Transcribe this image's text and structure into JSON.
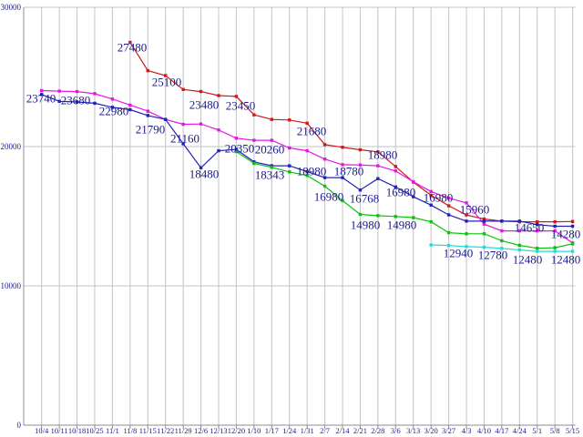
{
  "chart_data": {
    "type": "line",
    "title": "",
    "xlabel": "",
    "ylabel": "",
    "ylim": [
      0,
      30000
    ],
    "grid": true,
    "legend": "none",
    "colors": {
      "background": "#ffffff",
      "gridline": "#c3c3c3",
      "axis": "#8c8c8c",
      "label_text": "#1a1a8c"
    },
    "y_ticks": [
      {
        "label": "30000",
        "value": 30000
      },
      {
        "label": "20000",
        "value": 20000
      },
      {
        "label": "10000",
        "value": 10000
      },
      {
        "label": "0",
        "value": 0
      }
    ],
    "x_tick_labels": [
      "10/4",
      "10/11",
      "10/18",
      "10/25",
      "11/1",
      "11/8",
      "11/15",
      "11/22",
      "11/29",
      "12/6",
      "12/13",
      "12/20",
      "1/10",
      "1/17",
      "1/24",
      "1/31",
      "2/7",
      "2/14",
      "2/21",
      "2/28",
      "3/6",
      "3/13",
      "3/20",
      "3/27",
      "4/3",
      "4/10",
      "4/17",
      "4/24",
      "5/1",
      "5/8",
      "5/15"
    ],
    "series": [
      {
        "name": "series-red",
        "color": "#cc1a1a",
        "values": [
          null,
          null,
          null,
          null,
          null,
          27480,
          25450,
          25100,
          24100,
          23950,
          23660,
          23600,
          22280,
          21950,
          21910,
          21680,
          20140,
          19950,
          19770,
          19620,
          18570,
          17450,
          16500,
          15750,
          15090,
          14800,
          14650,
          14600,
          14600,
          14600,
          14620
        ]
      },
      {
        "name": "series-magenta",
        "color": "#e616e6",
        "values": [
          24020,
          23980,
          23950,
          23800,
          23410,
          22980,
          22540,
          21950,
          21600,
          21620,
          21190,
          20600,
          20450,
          20450,
          19900,
          19700,
          19100,
          18700,
          18680,
          18620,
          18250,
          17480,
          16770,
          16300,
          15960,
          14430,
          13950,
          13950,
          13950,
          13950,
          13080
        ]
      },
      {
        "name": "series-blue",
        "color": "#2222bb",
        "values": [
          23740,
          23250,
          23200,
          23110,
          22820,
          22650,
          22230,
          21950,
          20200,
          18480,
          19700,
          19800,
          18900,
          18620,
          18620,
          18200,
          17770,
          17770,
          16880,
          17700,
          17100,
          16400,
          15800,
          15100,
          14650,
          14650,
          14650,
          14650,
          14400,
          14280,
          14280
        ]
      },
      {
        "name": "series-green",
        "color": "#0cc20c",
        "values": [
          null,
          null,
          null,
          null,
          null,
          null,
          null,
          null,
          null,
          null,
          null,
          19640,
          18790,
          18510,
          18180,
          17920,
          17160,
          16120,
          15130,
          15040,
          14980,
          14900,
          14600,
          13820,
          13740,
          13740,
          13240,
          12910,
          12700,
          12740,
          13020
        ]
      },
      {
        "name": "series-cyan",
        "color": "#20dcdc",
        "values": [
          null,
          null,
          null,
          null,
          null,
          null,
          null,
          null,
          null,
          null,
          null,
          null,
          null,
          null,
          null,
          null,
          null,
          null,
          null,
          null,
          null,
          null,
          12940,
          12900,
          12820,
          12780,
          12690,
          12580,
          12480,
          12480,
          12480
        ]
      }
    ],
    "annotations": [
      {
        "text": "23740",
        "x": 45,
        "y": 108
      },
      {
        "text": "23680",
        "x": 83,
        "y": 110
      },
      {
        "text": "22980",
        "x": 125,
        "y": 122
      },
      {
        "text": "27480",
        "x": 145,
        "y": 52
      },
      {
        "text": "25100",
        "x": 183,
        "y": 90
      },
      {
        "text": "21790",
        "x": 165,
        "y": 142
      },
      {
        "text": "21160",
        "x": 203,
        "y": 152
      },
      {
        "text": "23480",
        "x": 224,
        "y": 115
      },
      {
        "text": "23450",
        "x": 264,
        "y": 116
      },
      {
        "text": "18480",
        "x": 224,
        "y": 191
      },
      {
        "text": "20350",
        "x": 263,
        "y": 163
      },
      {
        "text": "20260",
        "x": 296,
        "y": 164
      },
      {
        "text": "18343",
        "x": 296,
        "y": 192
      },
      {
        "text": "21680",
        "x": 342,
        "y": 144
      },
      {
        "text": "18980",
        "x": 342,
        "y": 188
      },
      {
        "text": "18780",
        "x": 383,
        "y": 188
      },
      {
        "text": "18980",
        "x": 420,
        "y": 170
      },
      {
        "text": "16980",
        "x": 361,
        "y": 216
      },
      {
        "text": "16768",
        "x": 400,
        "y": 218
      },
      {
        "text": "16980",
        "x": 440,
        "y": 211
      },
      {
        "text": "16980",
        "x": 481,
        "y": 217
      },
      {
        "text": "14980",
        "x": 401,
        "y": 247
      },
      {
        "text": "14980",
        "x": 441,
        "y": 247
      },
      {
        "text": "15960",
        "x": 521,
        "y": 230
      },
      {
        "text": "12940",
        "x": 503,
        "y": 278
      },
      {
        "text": "12780",
        "x": 541,
        "y": 280
      },
      {
        "text": "14650",
        "x": 581,
        "y": 250
      },
      {
        "text": "14280",
        "x": 621,
        "y": 257
      },
      {
        "text": "12480",
        "x": 579,
        "y": 285
      },
      {
        "text": "12480",
        "x": 621,
        "y": 285
      }
    ]
  }
}
